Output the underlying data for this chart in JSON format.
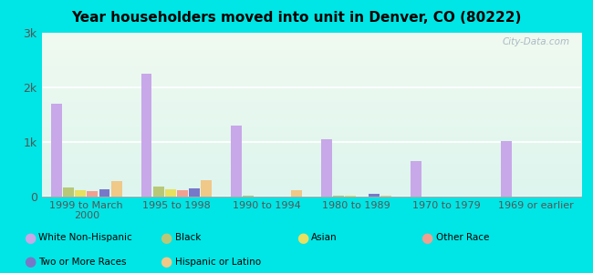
{
  "title": "Year householders moved into unit in Denver, CO (80222)",
  "categories": [
    "1999 to March\n2000",
    "1995 to 1998",
    "1990 to 1994",
    "1980 to 1989",
    "1970 to 1979",
    "1969 or earlier"
  ],
  "series": {
    "White Non-Hispanic": [
      1700,
      2250,
      1300,
      1050,
      650,
      1020
    ],
    "Black": [
      170,
      190,
      10,
      15,
      5,
      8
    ],
    "Asian": [
      110,
      130,
      8,
      10,
      5,
      5
    ],
    "Other Race": [
      100,
      120,
      8,
      8,
      5,
      5
    ],
    "Two or More Races": [
      130,
      145,
      8,
      55,
      5,
      5
    ],
    "Hispanic or Latino": [
      280,
      300,
      115,
      18,
      8,
      8
    ]
  },
  "colors": {
    "White Non-Hispanic": "#c8a8e8",
    "Black": "#b8c878",
    "Asian": "#e8e060",
    "Other Race": "#f0a090",
    "Two or More Races": "#7878c8",
    "Hispanic or Latino": "#f0c888"
  },
  "legend_order": [
    "White Non-Hispanic",
    "Black",
    "Asian",
    "Other Race",
    "Two or More Races",
    "Hispanic or Latino"
  ],
  "ylim": [
    0,
    3000
  ],
  "yticks": [
    0,
    1000,
    2000,
    3000
  ],
  "ytick_labels": [
    "0",
    "1k",
    "2k",
    "3k"
  ],
  "background_color": "#00e5e5",
  "watermark": "City-Data.com"
}
